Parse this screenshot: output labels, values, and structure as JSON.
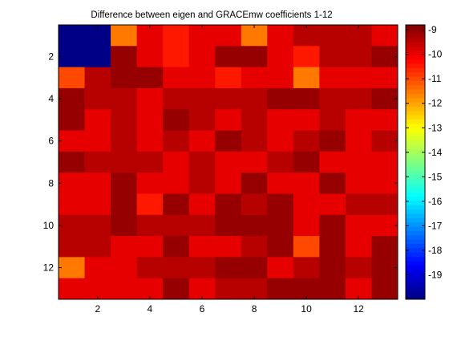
{
  "chart_data": {
    "type": "heatmap",
    "title": "Difference between eigen and GRACEmw coefficients 1-12",
    "xlabel": "",
    "ylabel": "",
    "xlim": [
      0.5,
      13.5
    ],
    "ylim": [
      0.5,
      13.5
    ],
    "y_reversed": true,
    "x_ticks": [
      2,
      4,
      6,
      8,
      10,
      12
    ],
    "y_ticks": [
      2,
      4,
      6,
      8,
      10,
      12
    ],
    "colormap": "jet",
    "clim": [
      -20,
      -8.8
    ],
    "colorbar_ticks": [
      -9,
      -10,
      -11,
      -12,
      -13,
      -14,
      -15,
      -16,
      -17,
      -18,
      -19
    ],
    "colorbar_levels": 64,
    "grid": false,
    "legend": "none",
    "values": [
      [
        -20,
        -20,
        -11.5,
        -10,
        -10.5,
        -10,
        -10,
        -11.5,
        -10,
        -9.5,
        -9.5,
        -9.5,
        -10
      ],
      [
        -20,
        -20,
        -9,
        -10,
        -10.5,
        -10,
        -9,
        -9,
        -10,
        -10.5,
        -9.5,
        -9.5,
        -9
      ],
      [
        -11,
        -9.5,
        -9,
        -9,
        -10,
        -10,
        -10.5,
        -10,
        -10,
        -11.5,
        -10,
        -10,
        -10
      ],
      [
        -9,
        -9.5,
        -9.5,
        -10,
        -9.5,
        -9.5,
        -9.5,
        -9.5,
        -9,
        -9,
        -9.5,
        -9.5,
        -9
      ],
      [
        -9,
        -10,
        -9.5,
        -10,
        -9,
        -9.5,
        -10,
        -9.5,
        -10,
        -10,
        -9.5,
        -10,
        -10
      ],
      [
        -10,
        -10,
        -9.5,
        -10,
        -9.5,
        -10,
        -9,
        -9.5,
        -10,
        -9.5,
        -9,
        -10,
        -9.5
      ],
      [
        -9,
        -9.5,
        -9.5,
        -9.5,
        -10,
        -9.5,
        -10,
        -10,
        -9.5,
        -9,
        -10,
        -10,
        -10
      ],
      [
        -10,
        -10,
        -9,
        -10,
        -10,
        -9.5,
        -10,
        -9,
        -10,
        -10,
        -9,
        -10,
        -10
      ],
      [
        -10,
        -10,
        -9,
        -10.5,
        -9,
        -10,
        -9,
        -9.5,
        -9,
        -10,
        -10,
        -9.5,
        -9.5
      ],
      [
        -9.5,
        -9.5,
        -9,
        -9.5,
        -9.5,
        -9.5,
        -9,
        -9,
        -9,
        -10,
        -9,
        -10,
        -10
      ],
      [
        -9.5,
        -9.5,
        -10,
        -10,
        -9,
        -10,
        -10,
        -9.5,
        -9,
        -11,
        -9,
        -10,
        -9
      ],
      [
        -11.5,
        -10,
        -10,
        -9.5,
        -9.5,
        -9.5,
        -9,
        -9,
        -10,
        -9.5,
        -9,
        -9.5,
        -9
      ],
      [
        -10,
        -10,
        -10,
        -10,
        -9,
        -10,
        -9.5,
        -9.5,
        -9,
        -9,
        -9,
        -10,
        -9
      ]
    ]
  }
}
